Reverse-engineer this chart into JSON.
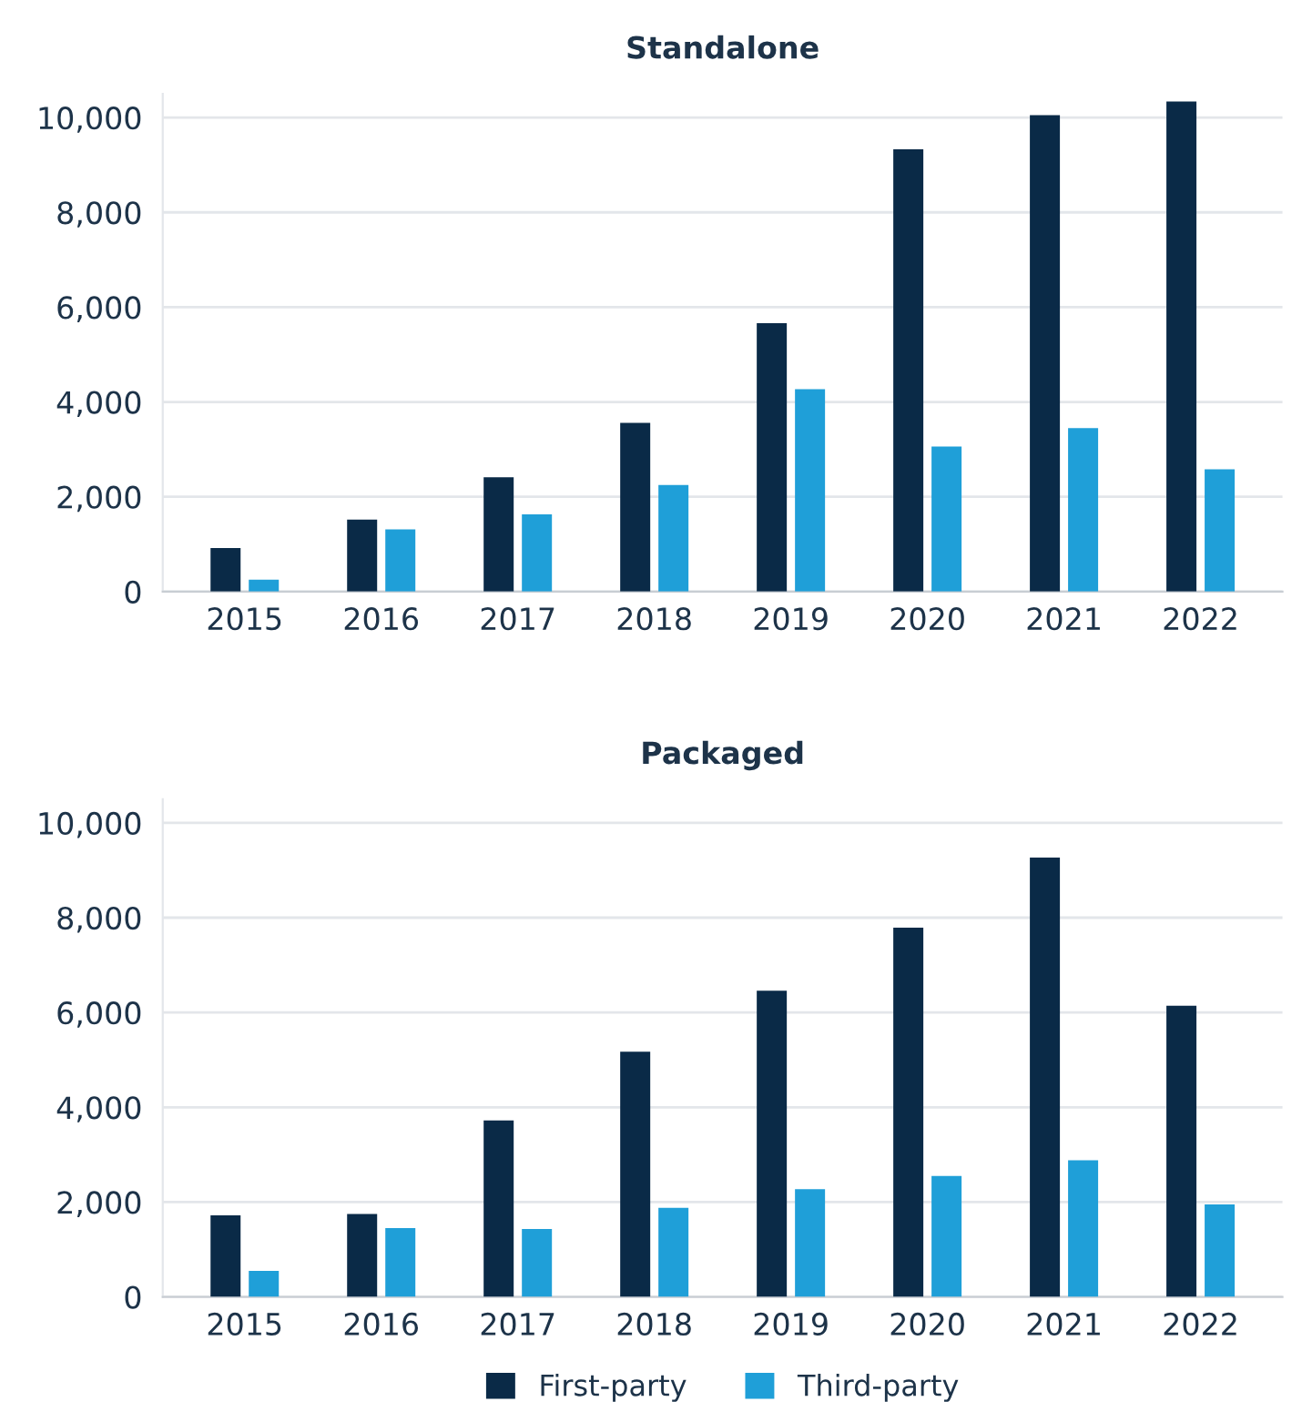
{
  "chart_data": [
    {
      "type": "bar",
      "title": "Standalone",
      "categories": [
        "2015",
        "2016",
        "2017",
        "2018",
        "2019",
        "2020",
        "2021",
        "2022"
      ],
      "series": [
        {
          "color": "#0a2a47",
          "values": [
            920,
            1520,
            2410,
            3560,
            5660,
            9330,
            10050,
            10340
          ]
        },
        {
          "color": "#1f9fd8",
          "values": [
            250,
            1310,
            1630,
            2250,
            4270,
            3060,
            3450,
            2580
          ]
        }
      ],
      "ylim": [
        0,
        10500
      ],
      "yticks": [
        0,
        {
          "value": 2000,
          "label": "2,000"
        },
        {
          "value": 4000,
          "label": "4,000"
        },
        {
          "value": 6000,
          "label": "6,000"
        },
        {
          "value": 8000,
          "label": "8,000"
        },
        {
          "value": 10000,
          "label": "10,000"
        }
      ],
      "grid": "y",
      "legend": false
    },
    {
      "type": "bar",
      "title": "Packaged",
      "categories": [
        "2015",
        "2016",
        "2017",
        "2018",
        "2019",
        "2020",
        "2021",
        "2022"
      ],
      "series": [
        {
          "name": "First-party",
          "color": "#0a2a47",
          "values": [
            1720,
            1750,
            3720,
            5170,
            6460,
            7790,
            9270,
            6140
          ]
        },
        {
          "name": "Third-party",
          "color": "#1f9fd8",
          "values": [
            550,
            1450,
            1430,
            1880,
            2270,
            2550,
            2880,
            1950
          ]
        }
      ],
      "ylim": [
        0,
        10500
      ],
      "yticks": [
        0,
        {
          "value": 2000,
          "label": "2,000"
        },
        {
          "value": 4000,
          "label": "4,000"
        },
        {
          "value": 6000,
          "label": "6,000"
        },
        {
          "value": 8000,
          "label": "8,000"
        },
        {
          "value": 10000,
          "label": "10,000"
        }
      ],
      "grid": "y",
      "legend": "bottom"
    }
  ]
}
